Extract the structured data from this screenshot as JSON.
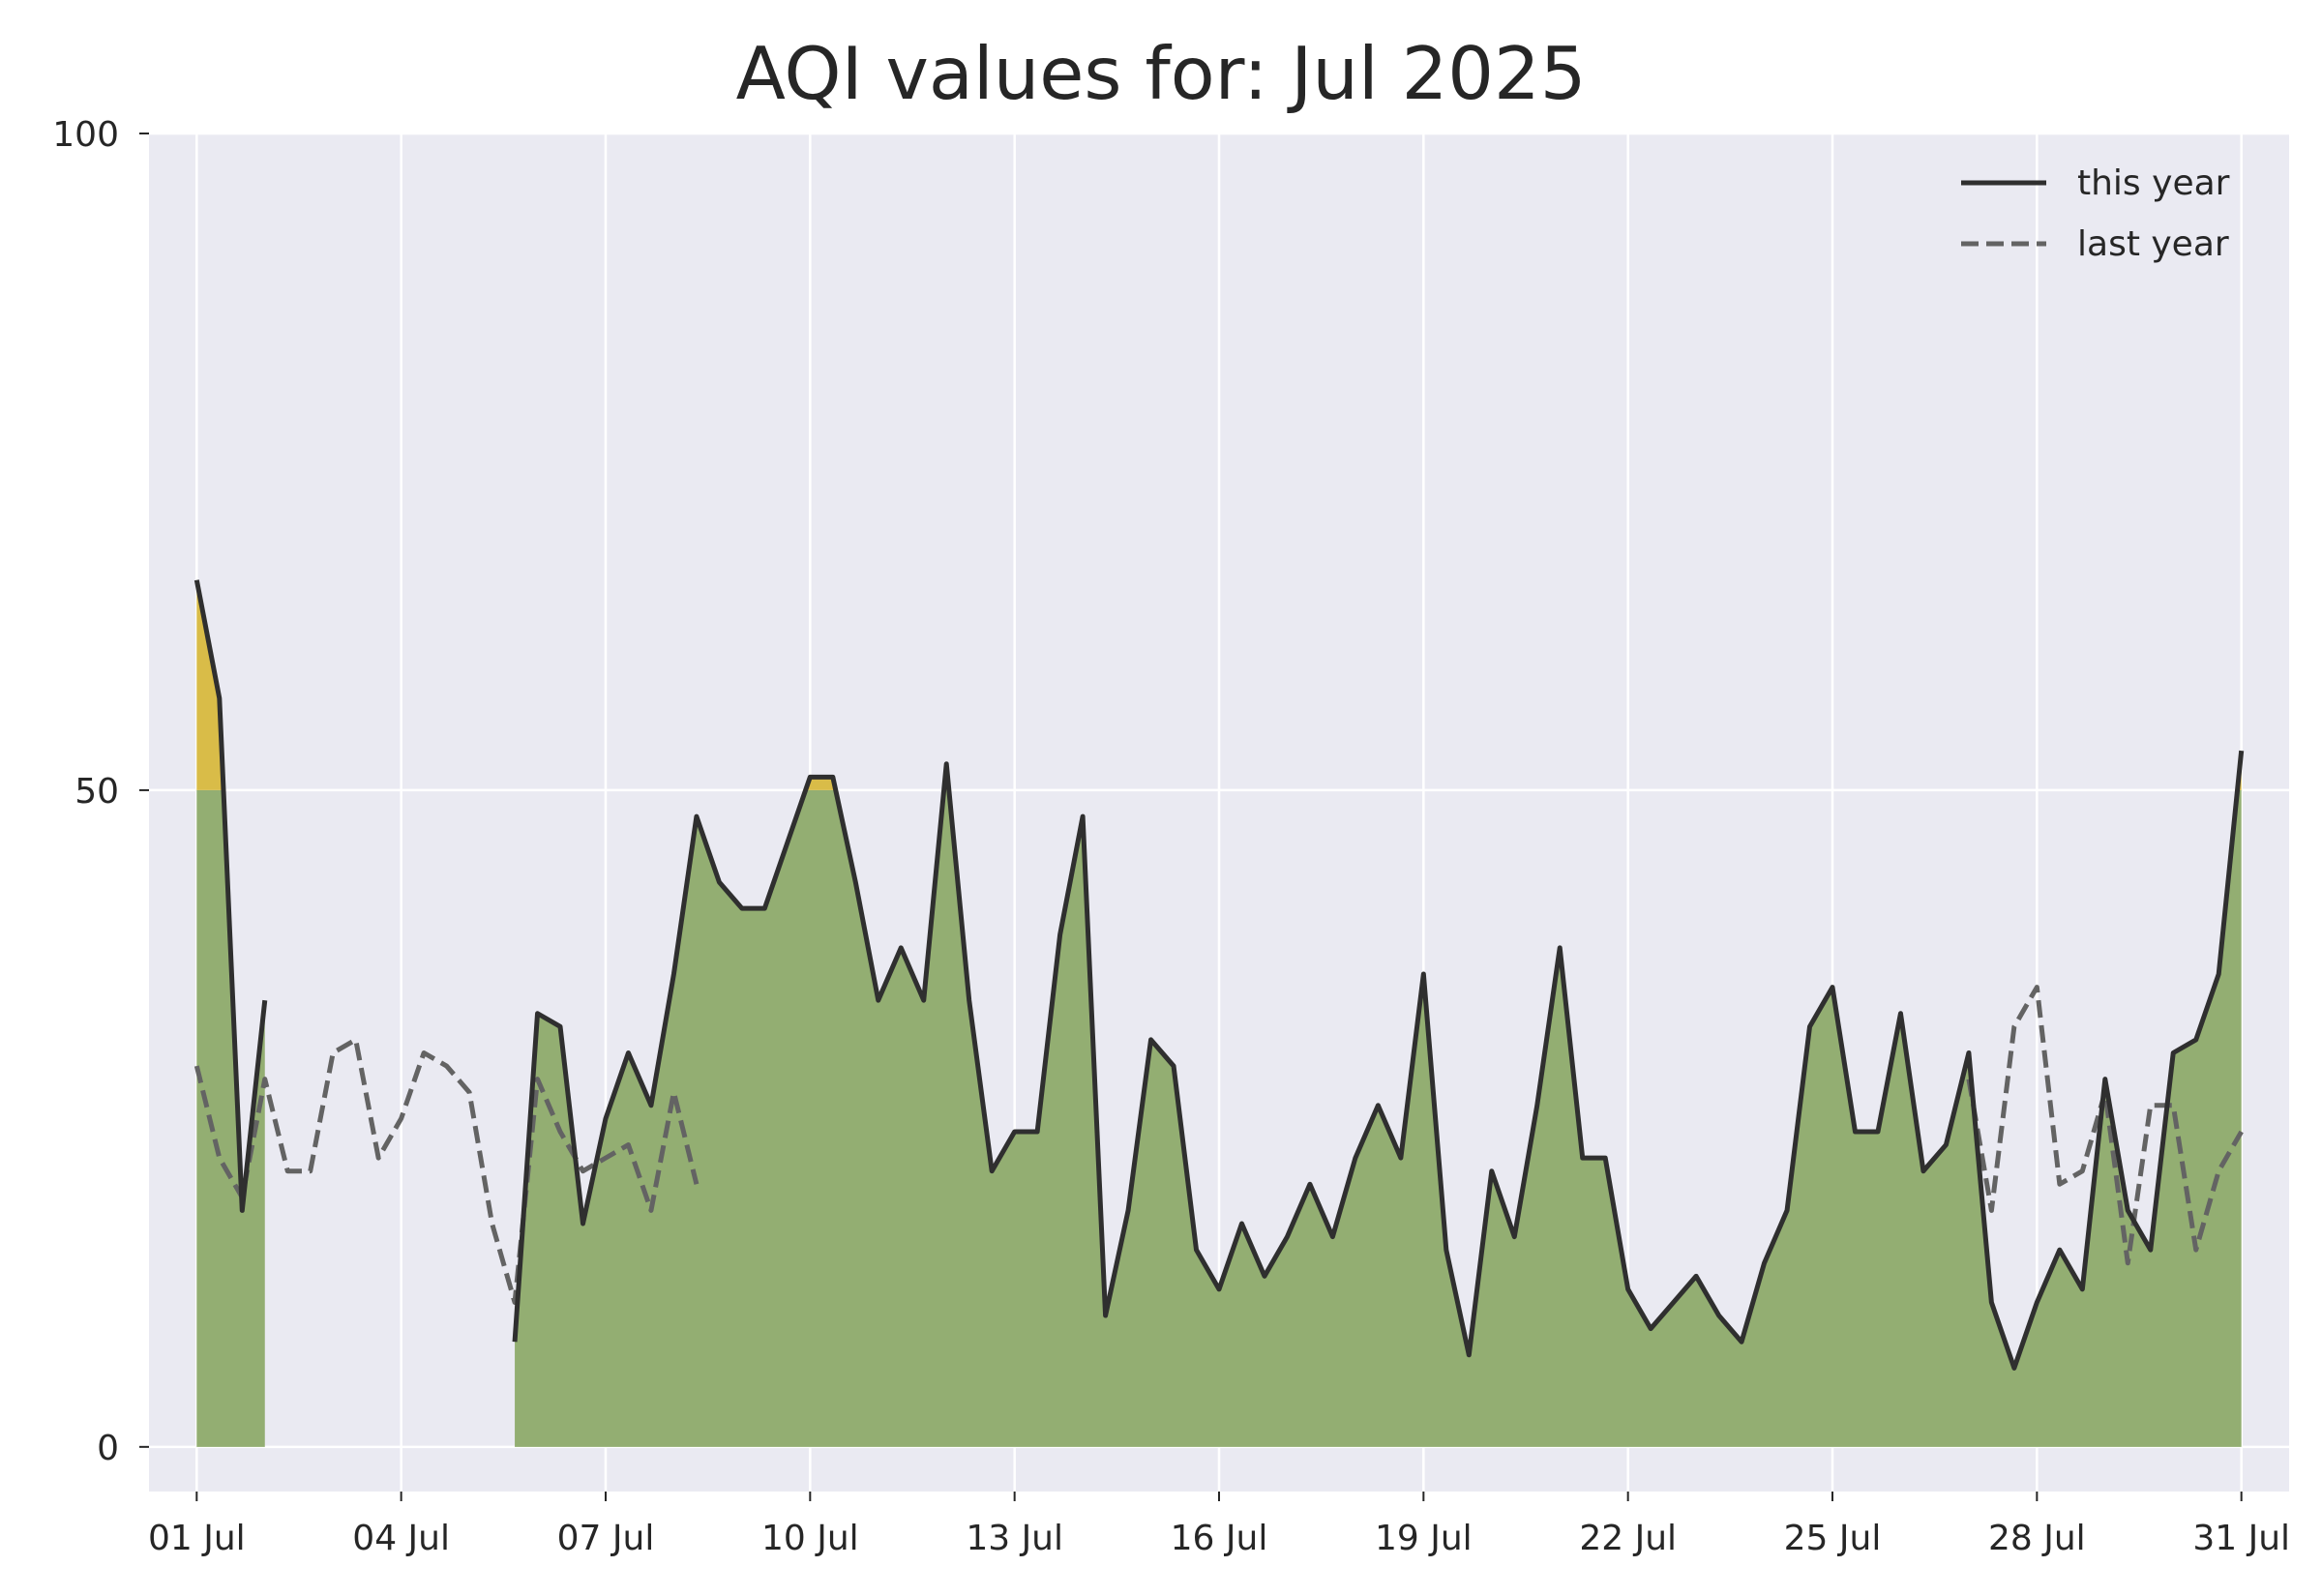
{
  "chart_data": {
    "type": "area",
    "title": "AQI values for: Jul 2025",
    "xlabel": "",
    "ylabel": "",
    "x_start": "2025-07-01",
    "x_end": "2025-07-31",
    "xticks": [
      "01 Jul",
      "04 Jul",
      "07 Jul",
      "10 Jul",
      "13 Jul",
      "16 Jul",
      "19 Jul",
      "22 Jul",
      "25 Jul",
      "28 Jul",
      "31 Jul"
    ],
    "ylim": [
      -3.4,
      100
    ],
    "yticks": [
      "0",
      "50",
      "100"
    ],
    "grid": true,
    "legend_position": "top-right",
    "band_threshold": 50,
    "colors": {
      "background": "#EAEAF2",
      "grid": "#FFFFFF",
      "good_fill": "#93AE72",
      "moderate_fill": "#D9BC48",
      "this_year_line": "#2F2F2F",
      "last_year_line": "#636363"
    },
    "series": [
      {
        "name": "this year",
        "style": "solid",
        "segments": [
          {
            "x": [
              "2025-07-01 00:00",
              "2025-07-01 08:00",
              "2025-07-01 16:00",
              "2025-07-02 00:00"
            ],
            "y": [
              66,
              57,
              18,
              34
            ]
          },
          {
            "x": [
              "2025-07-05 16:00",
              "2025-07-06 00:00",
              "2025-07-06 08:00",
              "2025-07-06 16:00",
              "2025-07-07 00:00",
              "2025-07-07 08:00",
              "2025-07-07 16:00",
              "2025-07-08 00:00",
              "2025-07-08 08:00",
              "2025-07-08 16:00",
              "2025-07-09 00:00",
              "2025-07-09 08:00",
              "2025-07-09 16:00",
              "2025-07-10 00:00",
              "2025-07-10 08:00",
              "2025-07-10 16:00",
              "2025-07-11 00:00",
              "2025-07-11 08:00",
              "2025-07-11 16:00",
              "2025-07-12 00:00",
              "2025-07-12 08:00",
              "2025-07-12 16:00",
              "2025-07-13 00:00",
              "2025-07-13 08:00",
              "2025-07-13 16:00",
              "2025-07-14 00:00",
              "2025-07-14 08:00",
              "2025-07-14 16:00",
              "2025-07-15 00:00",
              "2025-07-15 08:00",
              "2025-07-15 16:00",
              "2025-07-16 00:00",
              "2025-07-16 08:00",
              "2025-07-16 16:00",
              "2025-07-17 00:00",
              "2025-07-17 08:00",
              "2025-07-17 16:00",
              "2025-07-18 00:00",
              "2025-07-18 08:00",
              "2025-07-18 16:00",
              "2025-07-19 00:00",
              "2025-07-19 08:00",
              "2025-07-19 16:00",
              "2025-07-20 00:00",
              "2025-07-20 08:00",
              "2025-07-20 16:00",
              "2025-07-21 00:00",
              "2025-07-21 08:00",
              "2025-07-21 16:00",
              "2025-07-22 00:00",
              "2025-07-22 08:00",
              "2025-07-22 16:00",
              "2025-07-23 00:00",
              "2025-07-23 08:00",
              "2025-07-23 16:00",
              "2025-07-24 00:00",
              "2025-07-24 08:00",
              "2025-07-24 16:00",
              "2025-07-25 00:00",
              "2025-07-25 08:00",
              "2025-07-25 16:00",
              "2025-07-26 00:00",
              "2025-07-26 08:00",
              "2025-07-26 16:00",
              "2025-07-27 00:00",
              "2025-07-27 08:00",
              "2025-07-27 16:00",
              "2025-07-28 00:00",
              "2025-07-28 08:00",
              "2025-07-28 16:00",
              "2025-07-29 00:00",
              "2025-07-29 08:00",
              "2025-07-29 16:00",
              "2025-07-30 00:00",
              "2025-07-30 08:00",
              "2025-07-30 16:00",
              "2025-07-31 00:00"
            ],
            "y": [
              8,
              33,
              32,
              17,
              25,
              30,
              26,
              36,
              48,
              43,
              41,
              41,
              46,
              51,
              51,
              43,
              34,
              38,
              34,
              52,
              34,
              21,
              24,
              24,
              39,
              48,
              10,
              18,
              31,
              29,
              15,
              12,
              17,
              13,
              16,
              20,
              16,
              22,
              26,
              22,
              36,
              15,
              7,
              21,
              16,
              26,
              38,
              22,
              22,
              12,
              9,
              11,
              13,
              10,
              8,
              14,
              18,
              32,
              35,
              24,
              24,
              33,
              21,
              23,
              30,
              11,
              6,
              11,
              15,
              12,
              28,
              18,
              15,
              30,
              31,
              36,
              53
            ]
          }
        ]
      },
      {
        "name": "last year",
        "style": "dashed",
        "segments": [
          {
            "x": [
              "2025-07-01 00:00",
              "2025-07-01 08:00",
              "2025-07-01 16:00",
              "2025-07-02 00:00",
              "2025-07-02 08:00",
              "2025-07-02 16:00",
              "2025-07-03 00:00",
              "2025-07-03 08:00",
              "2025-07-03 16:00",
              "2025-07-04 00:00",
              "2025-07-04 08:00",
              "2025-07-04 16:00",
              "2025-07-05 00:00",
              "2025-07-05 08:00",
              "2025-07-05 16:00",
              "2025-07-06 00:00",
              "2025-07-06 08:00",
              "2025-07-06 16:00",
              "2025-07-07 00:00",
              "2025-07-07 08:00",
              "2025-07-07 16:00",
              "2025-07-08 00:00",
              "2025-07-08 08:00"
            ],
            "y": [
              29,
              22,
              19,
              28,
              21,
              21,
              30,
              31,
              22,
              25,
              30,
              29,
              27,
              17,
              11,
              28,
              24,
              21,
              22,
              23,
              18,
              27,
              20
            ]
          },
          {
            "x": [
              "2025-07-27 00:00",
              "2025-07-27 08:00",
              "2025-07-27 16:00",
              "2025-07-28 00:00",
              "2025-07-28 08:00",
              "2025-07-28 16:00",
              "2025-07-29 00:00",
              "2025-07-29 08:00",
              "2025-07-29 16:00",
              "2025-07-30 00:00",
              "2025-07-30 08:00",
              "2025-07-30 16:00",
              "2025-07-31 00:00"
            ],
            "y": [
              28,
              18,
              32,
              35,
              20,
              21,
              27,
              14,
              26,
              26,
              15,
              21,
              24
            ]
          }
        ]
      }
    ]
  }
}
